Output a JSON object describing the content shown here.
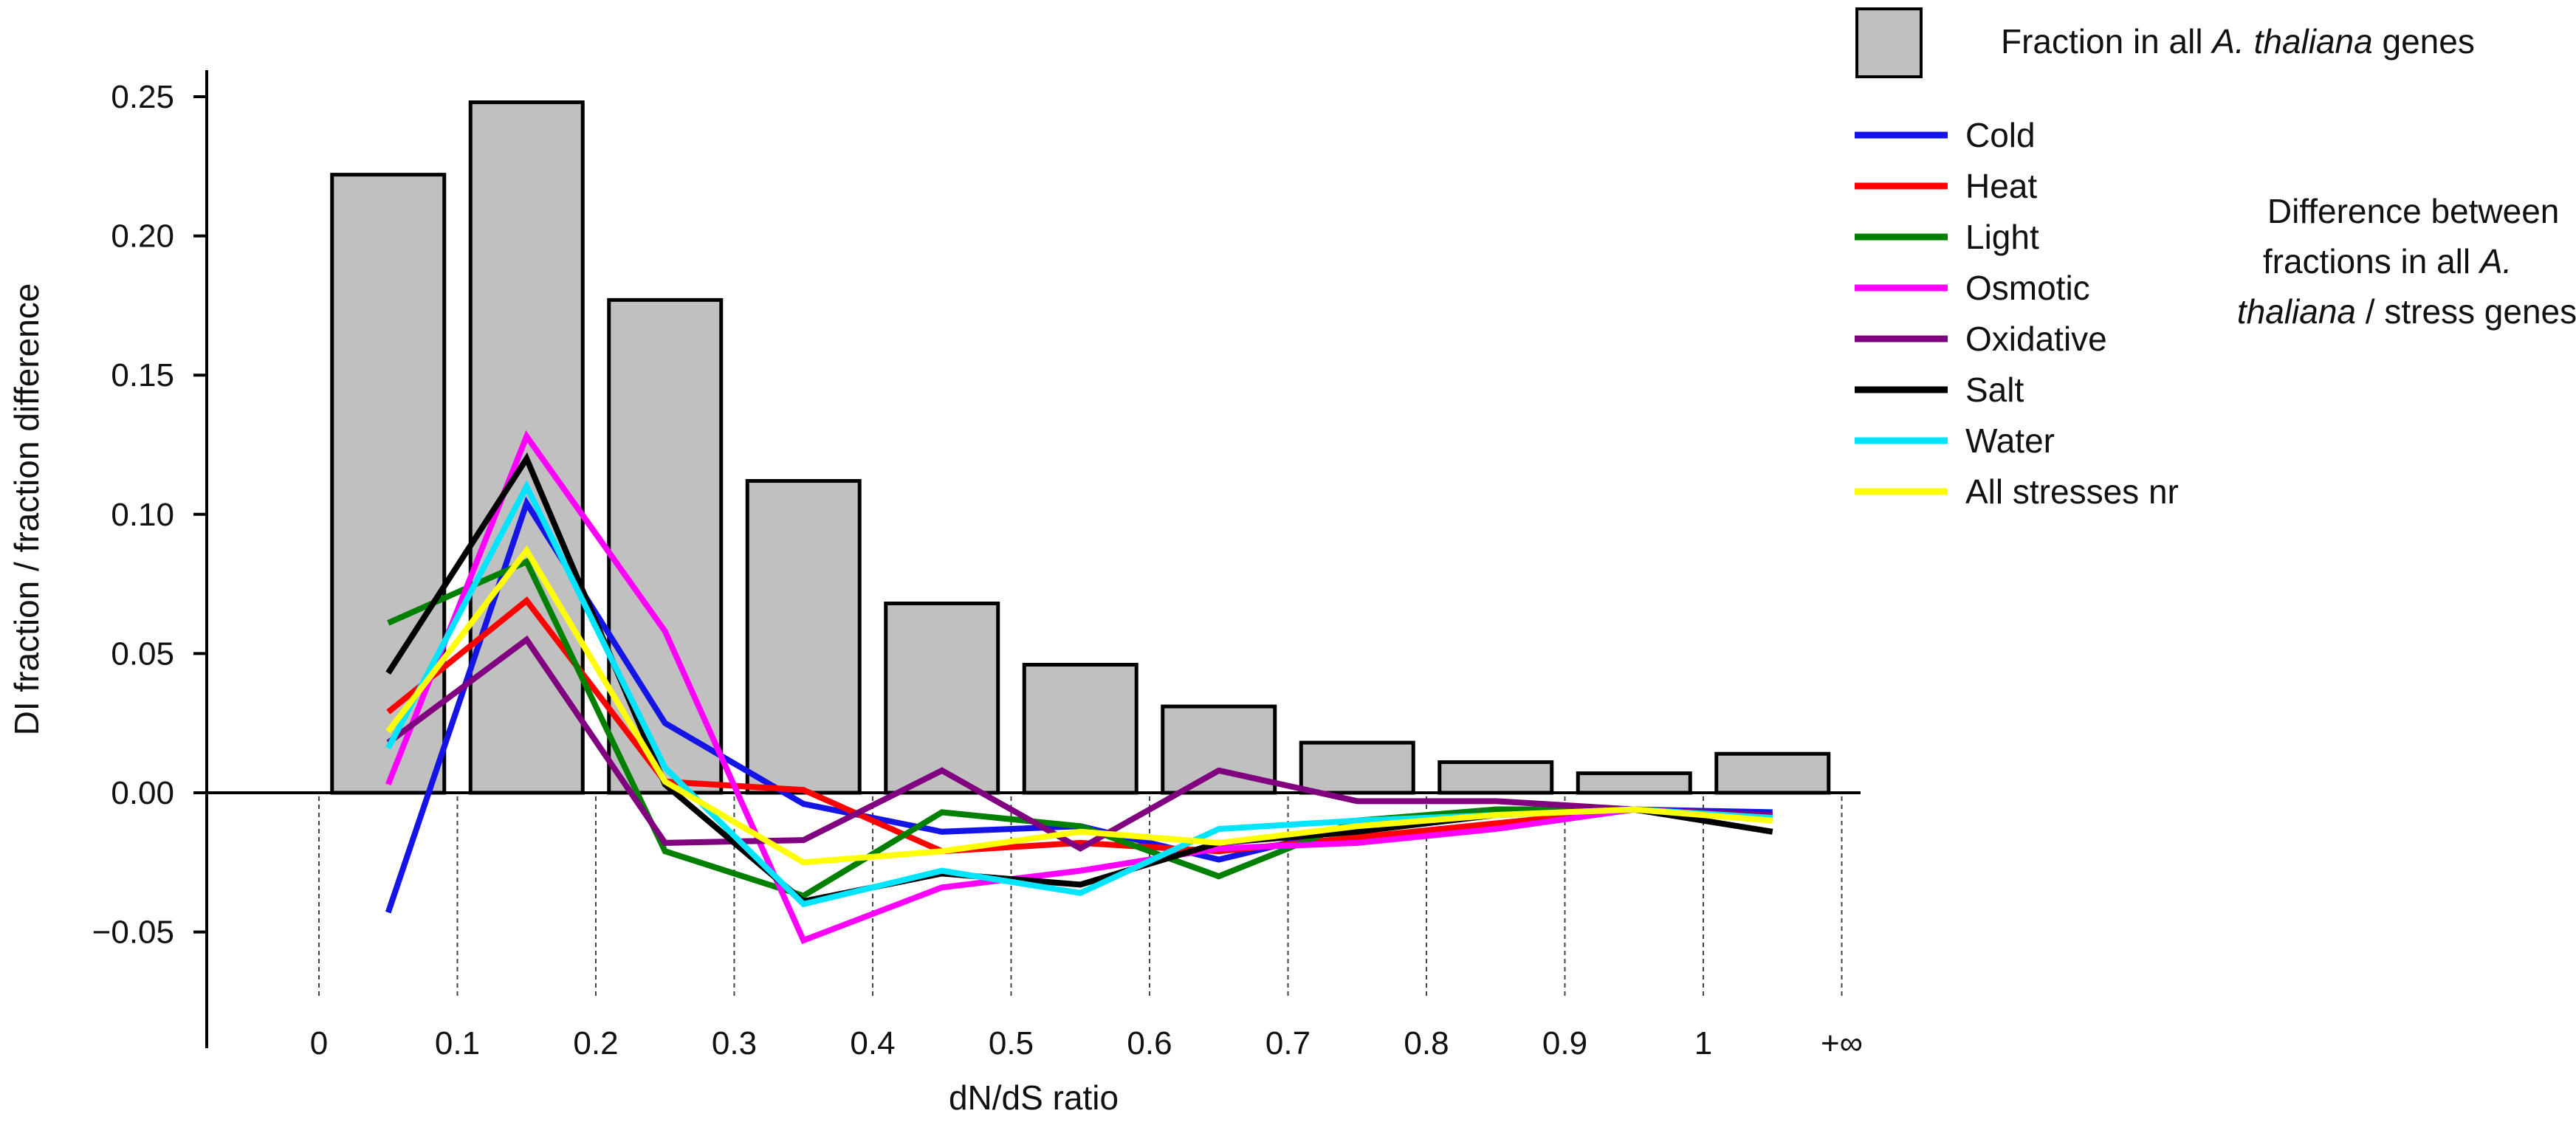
{
  "chart_data": {
    "type": "bar+line",
    "xlabel": "dN/dS ratio",
    "ylabel": "DI fraction / fraction difference",
    "ylim": [
      -0.085,
      0.26
    ],
    "yticks": [
      {
        "value": 0.25,
        "label": "0.25"
      },
      {
        "value": 0.2,
        "label": "0.20"
      },
      {
        "value": 0.15,
        "label": "0.15"
      },
      {
        "value": 0.1,
        "label": "0.10"
      },
      {
        "value": 0.05,
        "label": "0.05"
      },
      {
        "value": 0.0,
        "label": "0.00"
      },
      {
        "value": -0.05,
        "label": "−0.05"
      }
    ],
    "xticks": [
      "0",
      "0.1",
      "0.2",
      "0.3",
      "0.4",
      "0.5",
      "0.6",
      "0.7",
      "0.8",
      "0.9",
      "1",
      "+∞"
    ],
    "bins": [
      "0–0.1",
      "0.1–0.2",
      "0.2–0.3",
      "0.3–0.4",
      "0.4–0.5",
      "0.5–0.6",
      "0.6–0.7",
      "0.7–0.8",
      "0.8–0.9",
      "0.9–1",
      "1–+∞"
    ],
    "bars": {
      "name": "Fraction in all A. thaliana genes",
      "color": "#c0c0c0",
      "values": [
        0.222,
        0.248,
        0.177,
        0.112,
        0.068,
        0.046,
        0.031,
        0.018,
        0.011,
        0.007,
        0.014
      ]
    },
    "series": [
      {
        "name": "Cold",
        "color": "#1414e6",
        "values": [
          -0.043,
          0.104,
          0.025,
          -0.004,
          -0.014,
          -0.012,
          -0.024,
          -0.012,
          -0.006,
          -0.006,
          -0.007
        ]
      },
      {
        "name": "Heat",
        "color": "#ff0000",
        "values": [
          0.029,
          0.069,
          0.004,
          0.001,
          -0.021,
          -0.018,
          -0.021,
          -0.016,
          -0.011,
          -0.006,
          -0.009
        ]
      },
      {
        "name": "Light",
        "color": "#008000",
        "values": [
          0.061,
          0.083,
          -0.021,
          -0.037,
          -0.007,
          -0.012,
          -0.03,
          -0.01,
          -0.006,
          -0.006,
          -0.009
        ]
      },
      {
        "name": "Osmotic",
        "color": "#ff00ff",
        "values": [
          0.003,
          0.128,
          0.058,
          -0.053,
          -0.034,
          -0.028,
          -0.02,
          -0.018,
          -0.013,
          -0.006,
          -0.009
        ]
      },
      {
        "name": "Oxidative",
        "color": "#800080",
        "values": [
          0.018,
          0.055,
          -0.018,
          -0.017,
          0.008,
          -0.02,
          0.008,
          -0.003,
          -0.003,
          -0.006,
          -0.008
        ]
      },
      {
        "name": "Salt",
        "color": "#000000",
        "values": [
          0.043,
          0.12,
          0.003,
          -0.039,
          -0.029,
          -0.033,
          -0.018,
          -0.014,
          -0.008,
          -0.006,
          -0.014
        ]
      },
      {
        "name": "Water",
        "color": "#00e5ff",
        "values": [
          0.016,
          0.11,
          0.009,
          -0.04,
          -0.028,
          -0.036,
          -0.013,
          -0.01,
          -0.008,
          -0.006,
          -0.009
        ]
      },
      {
        "name": "All stresses nr",
        "color": "#ffff00",
        "values": [
          0.022,
          0.087,
          0.004,
          -0.025,
          -0.021,
          -0.014,
          -0.018,
          -0.012,
          -0.008,
          -0.006,
          -0.01
        ]
      }
    ],
    "legend": {
      "bar_label_prefix": "Fraction in all ",
      "bar_label_italic": "A. thaliana",
      "bar_label_suffix": " genes",
      "difference_caption": [
        "Difference between",
        "fractions in all ",
        "A.",
        "thaliana",
        " / stress genes"
      ]
    }
  }
}
